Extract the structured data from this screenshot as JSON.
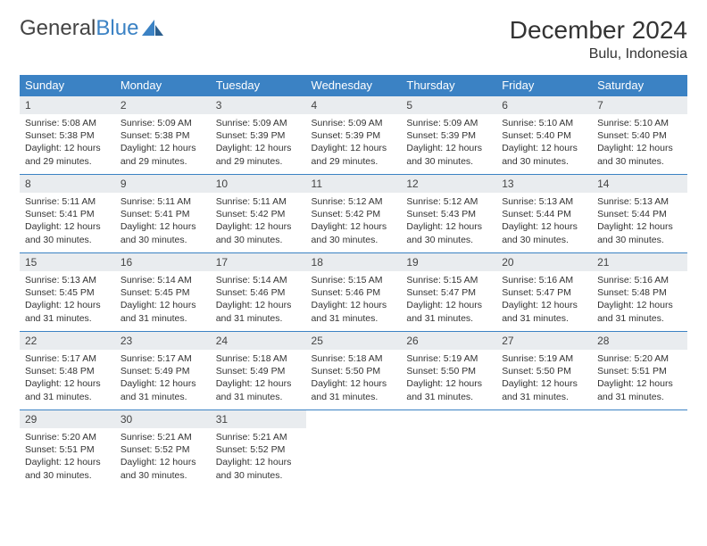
{
  "brand": {
    "word1": "General",
    "word2": "Blue"
  },
  "title": "December 2024",
  "location": "Bulu, Indonesia",
  "colors": {
    "header_bg": "#3b82c4",
    "header_text": "#ffffff",
    "daynum_bg": "#e9ecef",
    "rule": "#3b82c4",
    "text": "#333333",
    "brand_gray": "#555555",
    "brand_blue": "#3b82c4",
    "page_bg": "#ffffff"
  },
  "weekdays": [
    "Sunday",
    "Monday",
    "Tuesday",
    "Wednesday",
    "Thursday",
    "Friday",
    "Saturday"
  ],
  "weeks": [
    [
      {
        "n": "1",
        "sr": "5:08 AM",
        "ss": "5:38 PM",
        "dl": "12 hours and 29 minutes."
      },
      {
        "n": "2",
        "sr": "5:09 AM",
        "ss": "5:38 PM",
        "dl": "12 hours and 29 minutes."
      },
      {
        "n": "3",
        "sr": "5:09 AM",
        "ss": "5:39 PM",
        "dl": "12 hours and 29 minutes."
      },
      {
        "n": "4",
        "sr": "5:09 AM",
        "ss": "5:39 PM",
        "dl": "12 hours and 29 minutes."
      },
      {
        "n": "5",
        "sr": "5:09 AM",
        "ss": "5:39 PM",
        "dl": "12 hours and 30 minutes."
      },
      {
        "n": "6",
        "sr": "5:10 AM",
        "ss": "5:40 PM",
        "dl": "12 hours and 30 minutes."
      },
      {
        "n": "7",
        "sr": "5:10 AM",
        "ss": "5:40 PM",
        "dl": "12 hours and 30 minutes."
      }
    ],
    [
      {
        "n": "8",
        "sr": "5:11 AM",
        "ss": "5:41 PM",
        "dl": "12 hours and 30 minutes."
      },
      {
        "n": "9",
        "sr": "5:11 AM",
        "ss": "5:41 PM",
        "dl": "12 hours and 30 minutes."
      },
      {
        "n": "10",
        "sr": "5:11 AM",
        "ss": "5:42 PM",
        "dl": "12 hours and 30 minutes."
      },
      {
        "n": "11",
        "sr": "5:12 AM",
        "ss": "5:42 PM",
        "dl": "12 hours and 30 minutes."
      },
      {
        "n": "12",
        "sr": "5:12 AM",
        "ss": "5:43 PM",
        "dl": "12 hours and 30 minutes."
      },
      {
        "n": "13",
        "sr": "5:13 AM",
        "ss": "5:44 PM",
        "dl": "12 hours and 30 minutes."
      },
      {
        "n": "14",
        "sr": "5:13 AM",
        "ss": "5:44 PM",
        "dl": "12 hours and 30 minutes."
      }
    ],
    [
      {
        "n": "15",
        "sr": "5:13 AM",
        "ss": "5:45 PM",
        "dl": "12 hours and 31 minutes."
      },
      {
        "n": "16",
        "sr": "5:14 AM",
        "ss": "5:45 PM",
        "dl": "12 hours and 31 minutes."
      },
      {
        "n": "17",
        "sr": "5:14 AM",
        "ss": "5:46 PM",
        "dl": "12 hours and 31 minutes."
      },
      {
        "n": "18",
        "sr": "5:15 AM",
        "ss": "5:46 PM",
        "dl": "12 hours and 31 minutes."
      },
      {
        "n": "19",
        "sr": "5:15 AM",
        "ss": "5:47 PM",
        "dl": "12 hours and 31 minutes."
      },
      {
        "n": "20",
        "sr": "5:16 AM",
        "ss": "5:47 PM",
        "dl": "12 hours and 31 minutes."
      },
      {
        "n": "21",
        "sr": "5:16 AM",
        "ss": "5:48 PM",
        "dl": "12 hours and 31 minutes."
      }
    ],
    [
      {
        "n": "22",
        "sr": "5:17 AM",
        "ss": "5:48 PM",
        "dl": "12 hours and 31 minutes."
      },
      {
        "n": "23",
        "sr": "5:17 AM",
        "ss": "5:49 PM",
        "dl": "12 hours and 31 minutes."
      },
      {
        "n": "24",
        "sr": "5:18 AM",
        "ss": "5:49 PM",
        "dl": "12 hours and 31 minutes."
      },
      {
        "n": "25",
        "sr": "5:18 AM",
        "ss": "5:50 PM",
        "dl": "12 hours and 31 minutes."
      },
      {
        "n": "26",
        "sr": "5:19 AM",
        "ss": "5:50 PM",
        "dl": "12 hours and 31 minutes."
      },
      {
        "n": "27",
        "sr": "5:19 AM",
        "ss": "5:50 PM",
        "dl": "12 hours and 31 minutes."
      },
      {
        "n": "28",
        "sr": "5:20 AM",
        "ss": "5:51 PM",
        "dl": "12 hours and 31 minutes."
      }
    ],
    [
      {
        "n": "29",
        "sr": "5:20 AM",
        "ss": "5:51 PM",
        "dl": "12 hours and 30 minutes."
      },
      {
        "n": "30",
        "sr": "5:21 AM",
        "ss": "5:52 PM",
        "dl": "12 hours and 30 minutes."
      },
      {
        "n": "31",
        "sr": "5:21 AM",
        "ss": "5:52 PM",
        "dl": "12 hours and 30 minutes."
      },
      null,
      null,
      null,
      null
    ]
  ],
  "labels": {
    "sunrise": "Sunrise: ",
    "sunset": "Sunset: ",
    "daylight": "Daylight: "
  }
}
